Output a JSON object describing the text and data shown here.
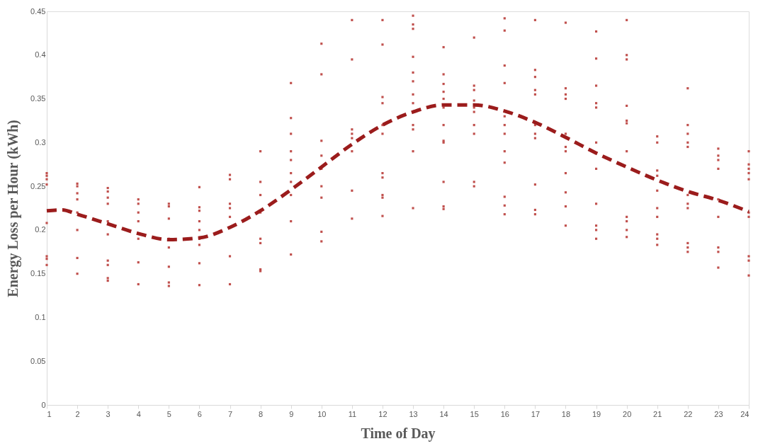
{
  "chart_data": {
    "type": "scatter",
    "xlabel": "Time of Day",
    "ylabel": "Energy Loss per Hour (kWh)",
    "xlim": [
      1,
      24
    ],
    "xticks": [
      1,
      2,
      3,
      4,
      5,
      6,
      7,
      8,
      9,
      10,
      11,
      12,
      13,
      14,
      15,
      16,
      17,
      18,
      19,
      20,
      21,
      22,
      23,
      24
    ],
    "ylim": [
      0,
      0.45
    ],
    "yticks": [
      0,
      0.05,
      0.1,
      0.15,
      0.2,
      0.25,
      0.3,
      0.35,
      0.4,
      0.45
    ],
    "grid": false,
    "series": [
      {
        "marker": "square",
        "color": "#c0504d",
        "x": [
          1,
          1,
          1,
          1,
          1,
          1,
          1,
          1,
          2,
          2,
          2,
          2,
          2,
          2,
          2,
          2,
          3,
          3,
          3,
          3,
          3,
          3,
          3,
          3,
          3,
          3,
          4,
          4,
          4,
          4,
          4,
          4,
          4,
          5,
          5,
          5,
          5,
          5,
          5,
          5,
          5,
          6,
          6,
          6,
          6,
          6,
          6,
          6,
          6,
          6,
          7,
          7,
          7,
          7,
          7,
          7,
          7,
          8,
          8,
          8,
          8,
          8,
          8,
          8,
          8,
          9,
          9,
          9,
          9,
          9,
          9,
          9,
          9,
          9,
          9,
          10,
          10,
          10,
          10,
          10,
          10,
          10,
          10,
          10,
          11,
          11,
          11,
          11,
          11,
          11,
          11,
          11,
          12,
          12,
          12,
          12,
          12,
          12,
          12,
          12,
          12,
          12,
          12,
          13,
          13,
          13,
          13,
          13,
          13,
          13,
          13,
          13,
          13,
          13,
          13,
          14,
          14,
          14,
          14,
          14,
          14,
          14,
          14,
          14,
          14,
          14,
          14,
          15,
          15,
          15,
          15,
          15,
          15,
          15,
          15,
          15,
          15,
          16,
          16,
          16,
          16,
          16,
          16,
          16,
          16,
          16,
          16,
          16,
          16,
          17,
          17,
          17,
          17,
          17,
          17,
          17,
          17,
          17,
          17,
          17,
          18,
          18,
          18,
          18,
          18,
          18,
          18,
          18,
          18,
          18,
          18,
          19,
          19,
          19,
          19,
          19,
          19,
          19,
          19,
          19,
          19,
          19,
          20,
          20,
          20,
          20,
          20,
          20,
          20,
          20,
          20,
          20,
          20,
          21,
          21,
          21,
          21,
          21,
          21,
          21,
          21,
          21,
          21,
          22,
          22,
          22,
          22,
          22,
          22,
          22,
          22,
          22,
          22,
          22,
          23,
          23,
          23,
          23,
          23,
          23,
          23,
          23,
          23,
          24,
          24,
          24,
          24,
          24,
          24,
          24,
          24,
          24,
          24
        ],
        "values": [
          0.265,
          0.262,
          0.258,
          0.252,
          0.208,
          0.17,
          0.167,
          0.16,
          0.253,
          0.25,
          0.242,
          0.235,
          0.22,
          0.2,
          0.168,
          0.15,
          0.248,
          0.244,
          0.237,
          0.23,
          0.21,
          0.195,
          0.165,
          0.16,
          0.145,
          0.142,
          0.235,
          0.23,
          0.22,
          0.21,
          0.19,
          0.163,
          0.138,
          0.23,
          0.227,
          0.213,
          0.19,
          0.18,
          0.158,
          0.14,
          0.136,
          0.249,
          0.226,
          0.222,
          0.21,
          0.2,
          0.19,
          0.183,
          0.162,
          0.137,
          0.263,
          0.258,
          0.23,
          0.225,
          0.215,
          0.17,
          0.138,
          0.29,
          0.255,
          0.24,
          0.22,
          0.19,
          0.185,
          0.155,
          0.153,
          0.368,
          0.328,
          0.31,
          0.29,
          0.28,
          0.265,
          0.255,
          0.24,
          0.21,
          0.172,
          0.413,
          0.378,
          0.302,
          0.285,
          0.27,
          0.25,
          0.237,
          0.198,
          0.187,
          0.44,
          0.395,
          0.315,
          0.31,
          0.305,
          0.29,
          0.245,
          0.213,
          0.44,
          0.412,
          0.352,
          0.345,
          0.32,
          0.31,
          0.265,
          0.26,
          0.24,
          0.237,
          0.216,
          0.445,
          0.435,
          0.43,
          0.398,
          0.38,
          0.37,
          0.355,
          0.345,
          0.32,
          0.315,
          0.29,
          0.225,
          0.409,
          0.378,
          0.367,
          0.358,
          0.35,
          0.34,
          0.32,
          0.302,
          0.3,
          0.255,
          0.227,
          0.224,
          0.42,
          0.365,
          0.36,
          0.348,
          0.34,
          0.335,
          0.32,
          0.31,
          0.255,
          0.25,
          0.442,
          0.428,
          0.388,
          0.368,
          0.33,
          0.32,
          0.31,
          0.29,
          0.277,
          0.238,
          0.228,
          0.218,
          0.44,
          0.383,
          0.375,
          0.36,
          0.355,
          0.32,
          0.31,
          0.305,
          0.252,
          0.223,
          0.218,
          0.437,
          0.362,
          0.355,
          0.35,
          0.31,
          0.295,
          0.29,
          0.265,
          0.243,
          0.227,
          0.205,
          0.427,
          0.396,
          0.365,
          0.345,
          0.34,
          0.3,
          0.27,
          0.23,
          0.205,
          0.2,
          0.19,
          0.44,
          0.4,
          0.395,
          0.342,
          0.325,
          0.322,
          0.29,
          0.215,
          0.21,
          0.2,
          0.192,
          0.307,
          0.3,
          0.268,
          0.262,
          0.245,
          0.225,
          0.215,
          0.195,
          0.19,
          0.183,
          0.362,
          0.32,
          0.31,
          0.3,
          0.295,
          0.24,
          0.23,
          0.225,
          0.185,
          0.18,
          0.175,
          0.293,
          0.285,
          0.28,
          0.27,
          0.235,
          0.215,
          0.18,
          0.175,
          0.157,
          0.29,
          0.275,
          0.27,
          0.265,
          0.258,
          0.22,
          0.215,
          0.17,
          0.165,
          0.148
        ]
      },
      {
        "type": "line",
        "marker": "none",
        "color": "#9b1c1c",
        "line_style": "dashed",
        "x": [
          1,
          1.5,
          2,
          3,
          4,
          5,
          6,
          7,
          8,
          9,
          10,
          11,
          12,
          13,
          14,
          15,
          16,
          17,
          18,
          19,
          20,
          21,
          22,
          23,
          24
        ],
        "values": [
          0.222,
          0.223,
          0.218,
          0.207,
          0.196,
          0.189,
          0.191,
          0.203,
          0.222,
          0.246,
          0.272,
          0.298,
          0.32,
          0.335,
          0.343,
          0.343,
          0.336,
          0.323,
          0.306,
          0.288,
          0.272,
          0.257,
          0.244,
          0.234,
          0.221
        ]
      }
    ]
  }
}
